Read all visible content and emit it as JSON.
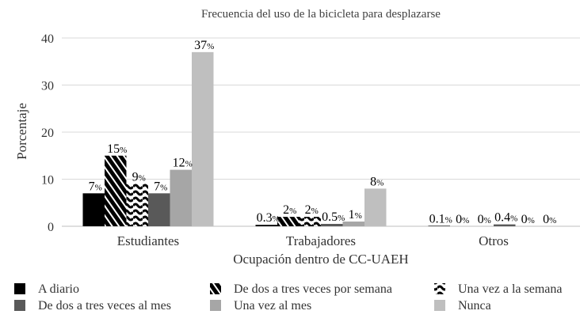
{
  "chart_data": {
    "type": "bar",
    "title": "Frecuencia del uso de la bicicleta para desplazarse",
    "xlabel": "Ocupación dentro de CC-UAEH",
    "ylabel": "Porcentaje",
    "ylim": [
      0,
      40
    ],
    "yticks": [
      "0",
      "10",
      "20",
      "30",
      "40"
    ],
    "grid": true,
    "legend_position": "bottom",
    "categories": [
      "Estudiantes",
      "Trabajadores",
      "Otros"
    ],
    "series": [
      {
        "name": "A diario",
        "values": [
          7,
          0.3,
          0.1
        ],
        "labels": [
          "7",
          "0.3",
          "0.1"
        ],
        "color": "#000000",
        "pattern": "solid"
      },
      {
        "name": "De dos a tres veces por semana",
        "values": [
          15,
          2,
          0
        ],
        "labels": [
          "15",
          "2",
          "0"
        ],
        "color": "#000000",
        "pattern": "diagonal-stripes"
      },
      {
        "name": "Una vez a la semana",
        "values": [
          9,
          2,
          0
        ],
        "labels": [
          "9",
          "2",
          "0"
        ],
        "color": "#000000",
        "pattern": "waves"
      },
      {
        "name": "De dos a tres veces al mes",
        "values": [
          7,
          0.5,
          0.4
        ],
        "labels": [
          "7",
          "0.5",
          "0.4"
        ],
        "color": "#595959",
        "pattern": "solid"
      },
      {
        "name": "Una vez al mes",
        "values": [
          12,
          1,
          0
        ],
        "labels": [
          "12",
          "1",
          "0"
        ],
        "color": "#a6a6a6",
        "pattern": "solid"
      },
      {
        "name": "Nunca",
        "values": [
          37,
          8,
          0
        ],
        "labels": [
          "37",
          "8",
          "0"
        ],
        "color": "#bfbfbf",
        "pattern": "solid"
      }
    ],
    "data_label_suffix": "%"
  }
}
